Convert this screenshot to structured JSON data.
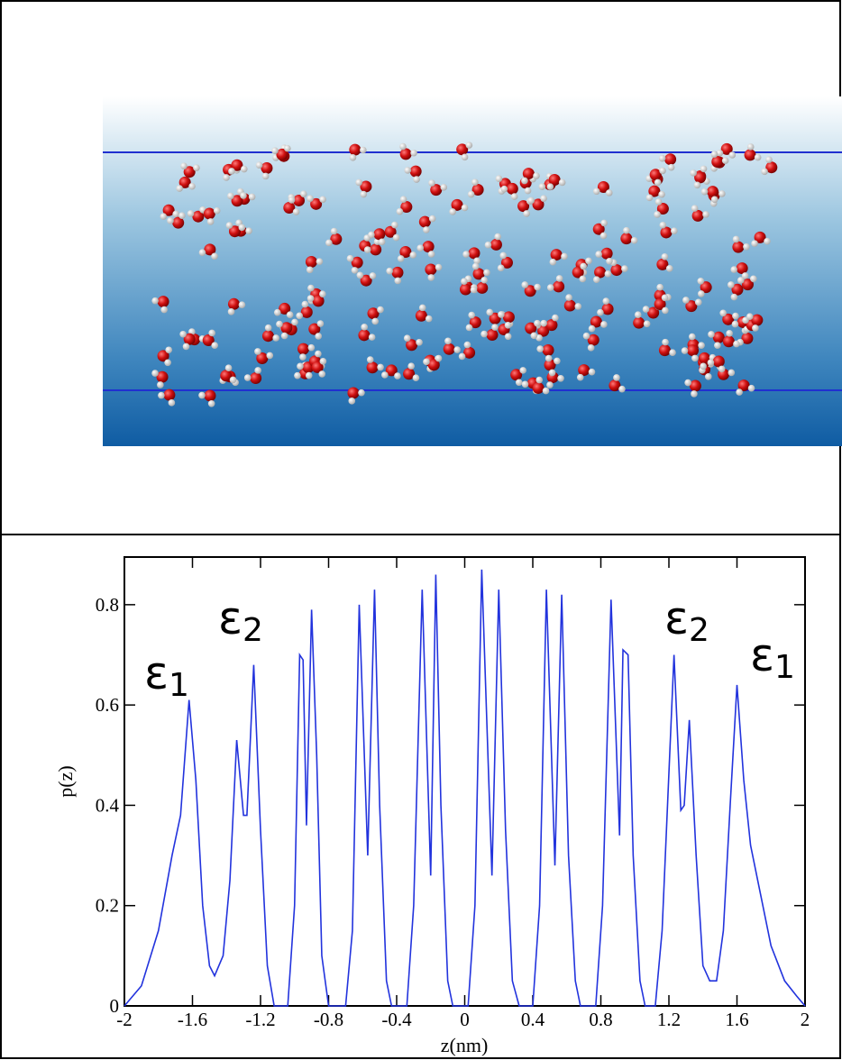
{
  "chart_data": {
    "type": "line",
    "ylabel": "p(z)",
    "xlabel": "z(nm)",
    "xlim": [
      -2,
      2
    ],
    "ylim": [
      0,
      0.895
    ],
    "xticks": [
      -2,
      -1.6,
      -1.2,
      -0.8,
      -0.4,
      0,
      0.4,
      0.8,
      1.2,
      1.6,
      2
    ],
    "yticks": [
      0,
      0.2,
      0.4,
      0.6,
      0.8
    ],
    "annotations": [
      {
        "text": "ε",
        "subscript": "1"
      },
      {
        "text": "ε",
        "subscript": "2"
      },
      {
        "text": "ε",
        "subscript": "2"
      },
      {
        "text": "ε",
        "subscript": "1"
      }
    ],
    "series": [
      {
        "color": "#2233dd",
        "x": [
          -2,
          -1.9,
          -1.8,
          -1.72,
          -1.67,
          -1.62,
          -1.58,
          -1.54,
          -1.5,
          -1.47,
          -1.42,
          -1.38,
          -1.34,
          -1.3,
          -1.28,
          -1.24,
          -1.2,
          -1.16,
          -1.12,
          -1.04,
          -1.0,
          -0.97,
          -0.95,
          -0.93,
          -0.9,
          -0.87,
          -0.84,
          -0.8,
          -0.7,
          -0.66,
          -0.62,
          -0.57,
          -0.53,
          -0.5,
          -0.46,
          -0.43,
          -0.34,
          -0.3,
          -0.25,
          -0.2,
          -0.17,
          -0.14,
          -0.1,
          -0.07,
          0.02,
          0.06,
          0.1,
          0.16,
          0.2,
          0.24,
          0.28,
          0.32,
          0.4,
          0.44,
          0.48,
          0.53,
          0.57,
          0.61,
          0.65,
          0.68,
          0.77,
          0.81,
          0.86,
          0.91,
          0.93,
          0.96,
          0.99,
          1.03,
          1.06,
          1.12,
          1.16,
          1.23,
          1.27,
          1.29,
          1.32,
          1.36,
          1.4,
          1.44,
          1.48,
          1.52,
          1.56,
          1.6,
          1.64,
          1.68,
          1.74,
          1.8,
          1.88,
          1.95,
          2
        ],
        "values": [
          0,
          0.04,
          0.15,
          0.3,
          0.38,
          0.61,
          0.45,
          0.2,
          0.08,
          0.06,
          0.1,
          0.25,
          0.53,
          0.38,
          0.38,
          0.68,
          0.35,
          0.08,
          0,
          0,
          0.2,
          0.7,
          0.69,
          0.36,
          0.79,
          0.5,
          0.1,
          0,
          0,
          0.15,
          0.8,
          0.3,
          0.83,
          0.4,
          0.05,
          0,
          0,
          0.2,
          0.83,
          0.26,
          0.86,
          0.4,
          0.05,
          0,
          0,
          0.2,
          0.87,
          0.26,
          0.83,
          0.35,
          0.05,
          0,
          0,
          0.2,
          0.83,
          0.28,
          0.82,
          0.3,
          0.05,
          0,
          0,
          0.2,
          0.81,
          0.34,
          0.71,
          0.7,
          0.3,
          0.05,
          0,
          0,
          0.15,
          0.7,
          0.39,
          0.4,
          0.57,
          0.3,
          0.08,
          0.05,
          0.05,
          0.15,
          0.4,
          0.64,
          0.45,
          0.32,
          0.22,
          0.12,
          0.05,
          0.02,
          0
        ]
      }
    ]
  }
}
